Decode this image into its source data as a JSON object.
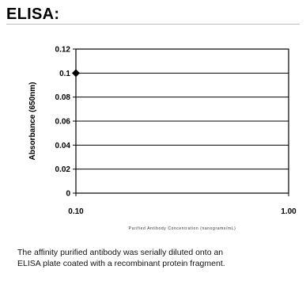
{
  "heading": "ELISA:",
  "caption": {
    "line1": "The affinity purified antibody was serially diluted onto an",
    "line2": "ELISA plate coated with a recombinant protein fragment."
  },
  "chart_data": {
    "type": "scatter",
    "title": "",
    "xlabel": "Purified Antibody Concentration (nanograms/mL)",
    "ylabel": "Absorbance (650nm)",
    "x_scale": "log",
    "xlim": [
      0.1,
      1.0
    ],
    "ylim": [
      0,
      0.12
    ],
    "x_ticks": [
      "0.10",
      "1.00"
    ],
    "y_ticks": [
      "0",
      "0.02",
      "0.04",
      "0.06",
      "0.08",
      "0.1",
      "0.12"
    ],
    "grid": "horizontal",
    "series": [
      {
        "points": [
          {
            "x": 0.1,
            "y": 0.1
          }
        ],
        "color": "#000000",
        "marker": "diamond"
      }
    ]
  }
}
